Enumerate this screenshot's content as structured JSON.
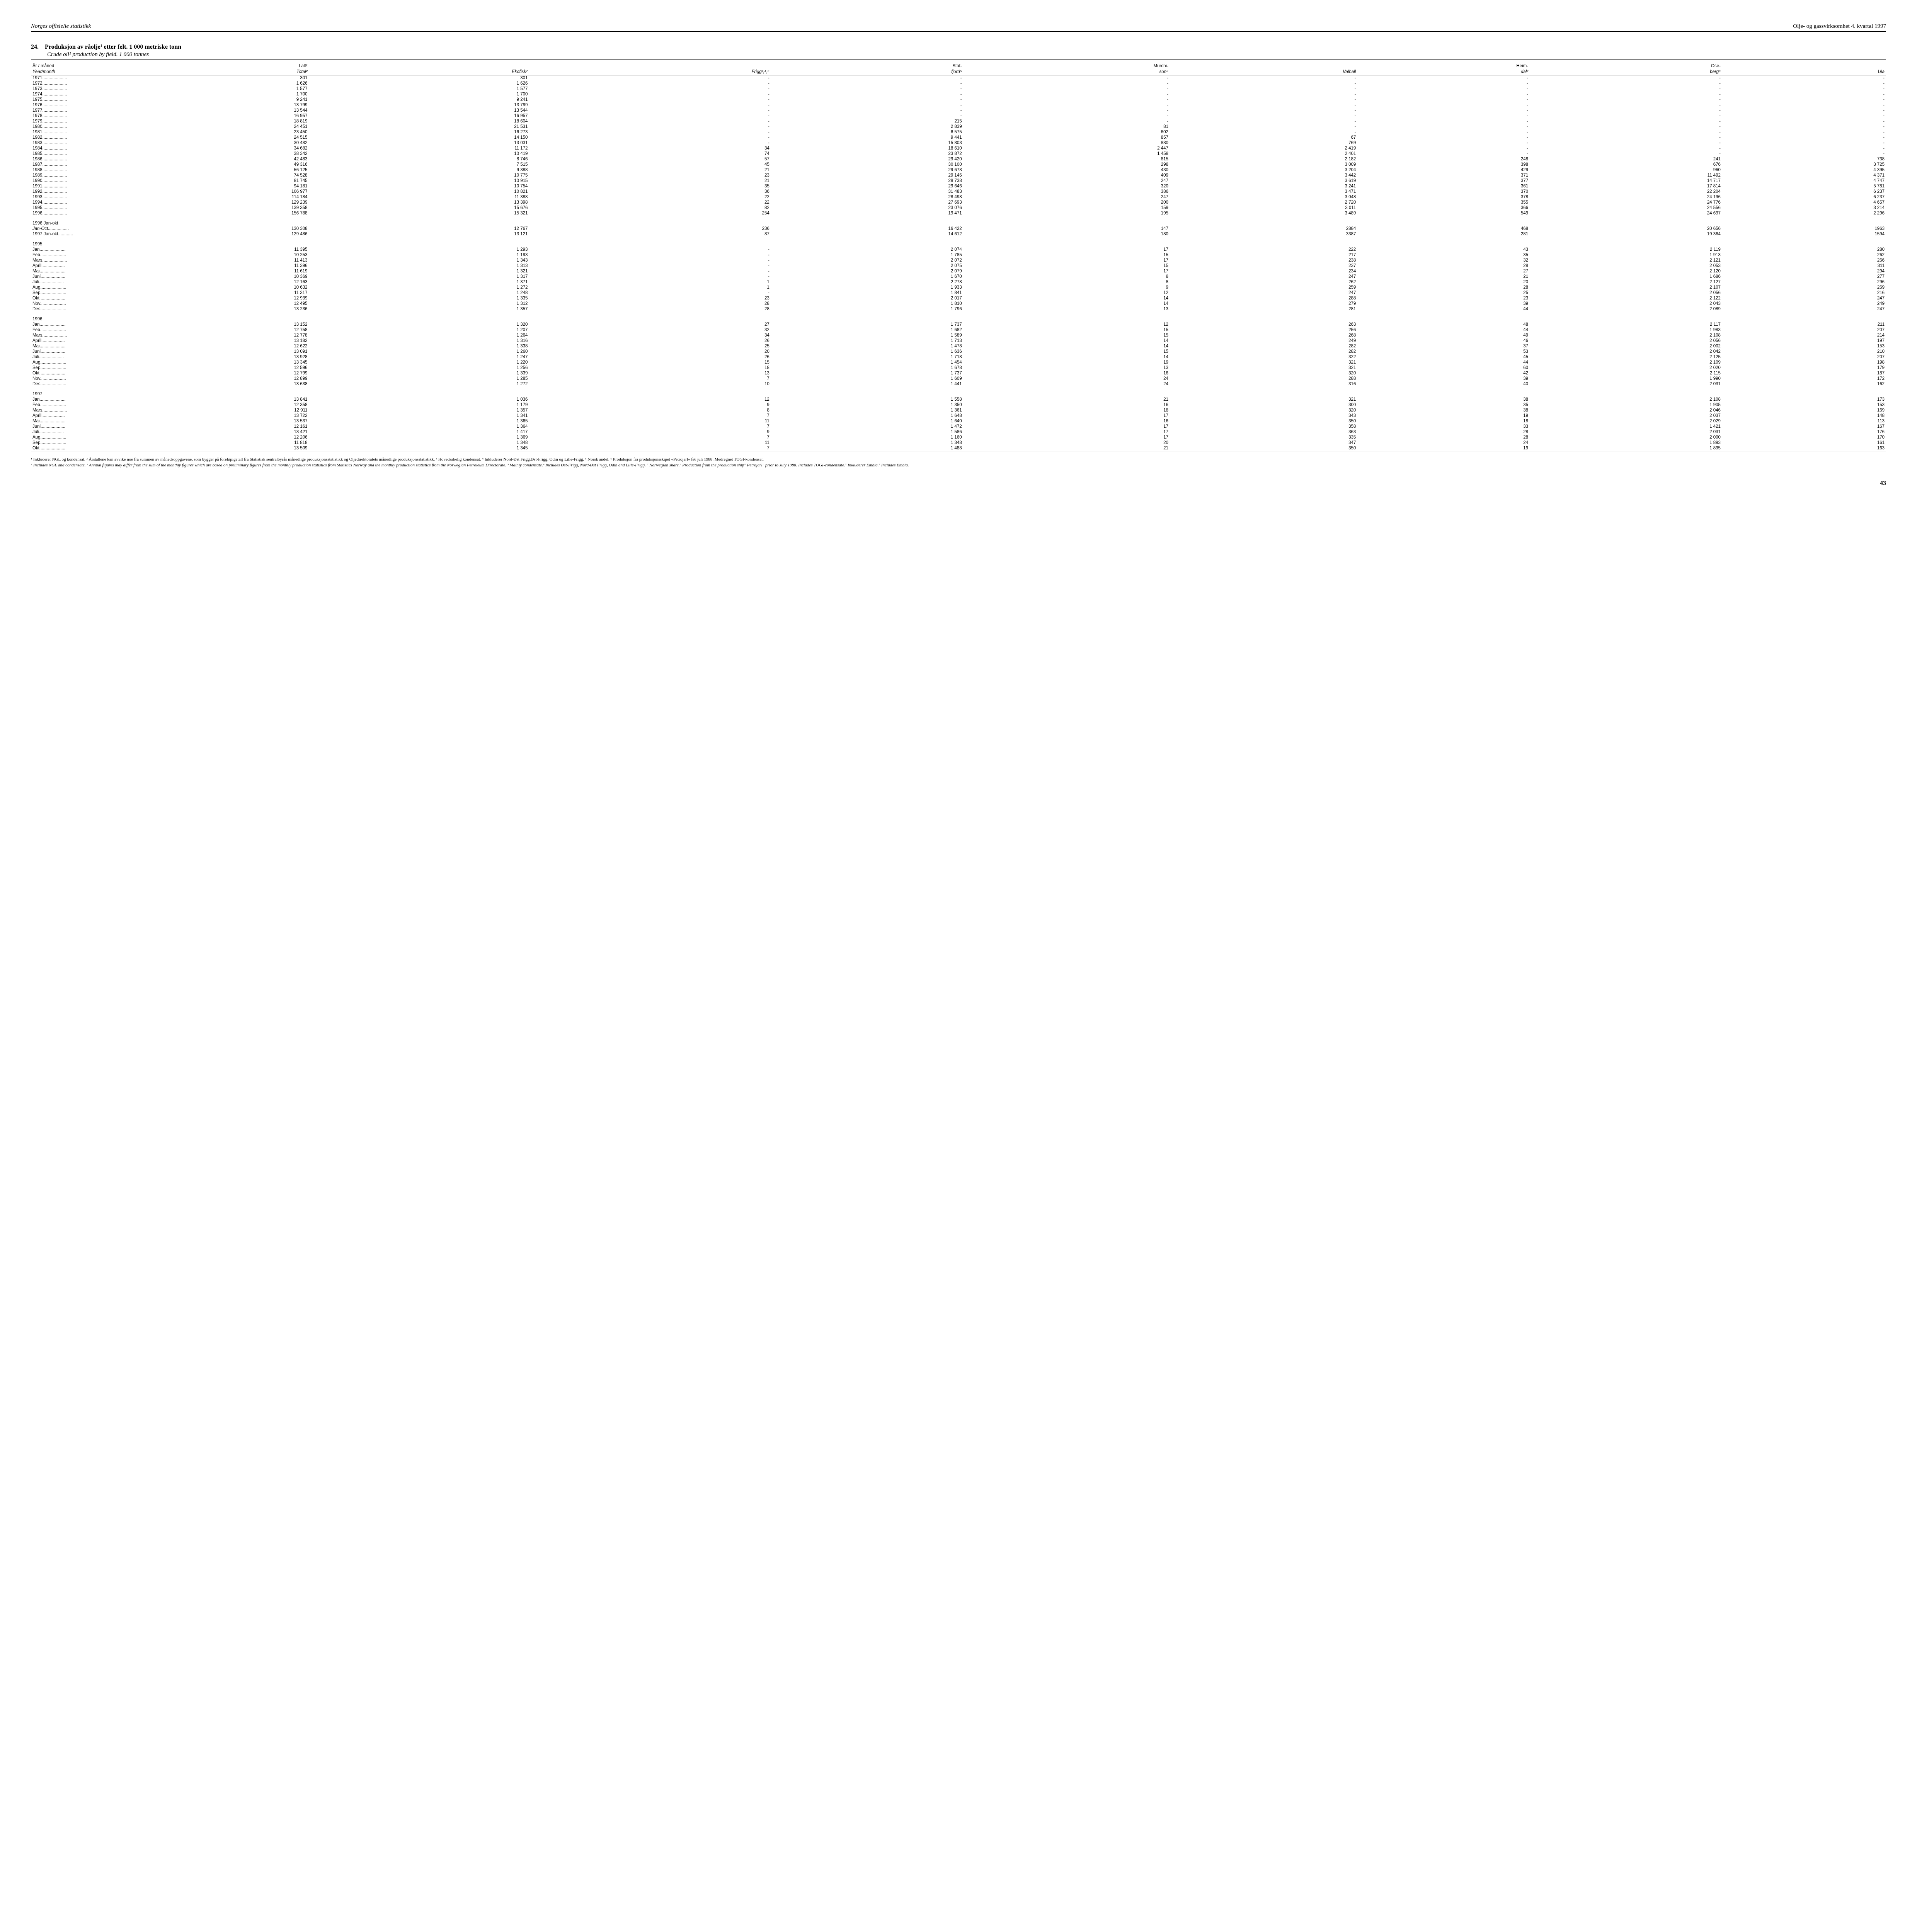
{
  "header": {
    "left": "Norges offisielle statistikk",
    "right": "Olje- og gassvirksomhet 4. kvartal 1997"
  },
  "title": {
    "number": "24.",
    "main": "Produksjon av råolje¹ etter felt. 1 000 metriske tonn",
    "sub": "Crude oil¹ production by field. 1 000 tonnes"
  },
  "columns": {
    "line1": [
      "År / måned",
      "I alt²",
      "",
      "",
      "Stat-",
      "Murchi-",
      "",
      "Heim-",
      "Ose-",
      ""
    ],
    "line2": [
      "Year/month",
      "Total²",
      "Ekofisk⁷",
      "Frigg³,⁴,⁵",
      "fjord⁵",
      "son⁵",
      "Valhall",
      "dal³",
      "berg⁶",
      "Ula"
    ]
  },
  "rows_years": [
    {
      "label": "1971",
      "v": [
        "301",
        "301",
        "-",
        "-",
        "-",
        "-",
        "-",
        "-",
        "-"
      ]
    },
    {
      "label": "1972",
      "v": [
        "1 626",
        "1 626",
        "-",
        "-",
        "-",
        "-",
        "-",
        "-",
        "-"
      ]
    },
    {
      "label": "1973",
      "v": [
        "1 577",
        "1 577",
        "-",
        "-",
        "-",
        "-",
        "-",
        "-",
        "-"
      ]
    },
    {
      "label": "1974",
      "v": [
        "1 700",
        "1 700",
        "-",
        "-",
        "-",
        "-",
        "-",
        "-",
        "-"
      ]
    },
    {
      "label": "1975",
      "v": [
        "9 241",
        "9 241",
        "-",
        "-",
        "-",
        "-",
        "-",
        "-",
        "-"
      ]
    },
    {
      "label": "1976",
      "v": [
        "13 799",
        "13 799",
        "-",
        "-",
        "-",
        "-",
        "-",
        "-",
        "-"
      ]
    },
    {
      "label": "1977",
      "v": [
        "13 544",
        "13 544",
        "-",
        "-",
        "-",
        "-",
        "-",
        "-",
        "-"
      ]
    },
    {
      "label": "1978",
      "v": [
        "16 957",
        "16 957",
        "-",
        "-",
        "-",
        "-",
        "-",
        "-",
        "-"
      ]
    },
    {
      "label": "1979",
      "v": [
        "18 819",
        "18 604",
        "-",
        "215",
        "-",
        "-",
        "-",
        "-",
        "-"
      ]
    },
    {
      "label": "1980",
      "v": [
        "24 451",
        "21 531",
        "-",
        "2 839",
        "81",
        "-",
        "-",
        "-",
        "-"
      ]
    },
    {
      "label": "1981",
      "v": [
        "23 450",
        "16 273",
        "-",
        "6 575",
        "602",
        "-",
        "-",
        "-",
        "-"
      ]
    },
    {
      "label": "1982",
      "v": [
        "24 515",
        "14 150",
        "-",
        "9 441",
        "857",
        "67",
        "-",
        "-",
        "-"
      ]
    },
    {
      "label": "1983",
      "v": [
        "30 482",
        "13 031",
        "-",
        "15 803",
        "880",
        "769",
        "-",
        "-",
        "-"
      ]
    },
    {
      "label": "1984",
      "v": [
        "34 682",
        "11 172",
        "34",
        "18 610",
        "2 447",
        "2 419",
        "-",
        "-",
        "-"
      ]
    },
    {
      "label": "1985",
      "v": [
        "38 342",
        "10 419",
        "74",
        "23 872",
        "1 458",
        "2 401",
        "-",
        "-",
        "-"
      ]
    },
    {
      "label": "1986",
      "v": [
        "42 483",
        "8 746",
        "57",
        "29 420",
        "815",
        "2 182",
        "248",
        "241",
        "738"
      ]
    },
    {
      "label": "1987",
      "v": [
        "49 316",
        "7 515",
        "45",
        "30 100",
        "298",
        "3 009",
        "398",
        "676",
        "3 725"
      ]
    },
    {
      "label": "1988",
      "v": [
        "56 125",
        "9 388",
        "21",
        "29 678",
        "430",
        "3 204",
        "429",
        "960",
        "4 395"
      ]
    },
    {
      "label": "1989",
      "v": [
        "74 528",
        "10 775",
        "23",
        "29 146",
        "409",
        "3 442",
        "371",
        "11 492",
        "4 371"
      ]
    },
    {
      "label": "1990",
      "v": [
        "81 745",
        "10 915",
        "21",
        "28 738",
        "247",
        "3 619",
        "377",
        "14 717",
        "4 747"
      ]
    },
    {
      "label": "1991",
      "v": [
        "94 181",
        "10 754",
        "35",
        "29 646",
        "320",
        "3 241",
        "361",
        "17 814",
        "5 781"
      ]
    },
    {
      "label": "1992",
      "v": [
        "106 977",
        "10 821",
        "36",
        "31 483",
        "386",
        "3 471",
        "370",
        "22 204",
        "6 237"
      ]
    },
    {
      "label": "1993",
      "v": [
        "114 184",
        "11 388",
        "22",
        "28 498",
        "247",
        "3 048",
        "378",
        "24 196",
        "6 237"
      ]
    },
    {
      "label": "1994",
      "v": [
        "129 239",
        "13 398",
        "22",
        "27 693",
        "200",
        "2 720",
        "355",
        "24 776",
        "4 657"
      ]
    },
    {
      "label": "1995",
      "v": [
        "139 358",
        "15 676",
        "82",
        "23 076",
        "159",
        "3 011",
        "366",
        "24 556",
        "3 214"
      ]
    },
    {
      "label": "1996",
      "v": [
        "156 788",
        "15 321",
        "254",
        "19 471",
        "195",
        "3 489",
        "549",
        "24 697",
        "2 296"
      ]
    }
  ],
  "rows_janokt_header": "1996 Jan-okt",
  "rows_janokt": [
    {
      "label": "Jan-Oct",
      "ital": true,
      "v": [
        "130 308",
        "12 767",
        "236",
        "16 422",
        "147",
        "2884",
        "468",
        "20 656",
        "1963"
      ]
    },
    {
      "label": "1997 Jan-okt",
      "v": [
        "129 486",
        "13 121",
        "87",
        "14 612",
        "180",
        "3387",
        "281",
        "19 364",
        "1594"
      ]
    }
  ],
  "rows_1995_header": "1995",
  "rows_1995": [
    {
      "label": "Jan",
      "v": [
        "11 395",
        "1 293",
        "-",
        "2 074",
        "17",
        "222",
        "43",
        "2 119",
        "280"
      ]
    },
    {
      "label": "Feb",
      "v": [
        "10 253",
        "1 193",
        "-",
        "1 785",
        "15",
        "217",
        "35",
        "1 913",
        "262"
      ]
    },
    {
      "label": "Mars",
      "v": [
        "11 413",
        "1 343",
        "-",
        "2 072",
        "17",
        "238",
        "32",
        "2 121",
        "266"
      ]
    },
    {
      "label": "April",
      "v": [
        "11 396",
        "1 313",
        "-",
        "2 075",
        "15",
        "237",
        "28",
        "2 053",
        "311"
      ]
    },
    {
      "label": "Mai",
      "v": [
        "11 619",
        "1 321",
        "-",
        "2 079",
        "17",
        "234",
        "27",
        "2 120",
        "294"
      ]
    },
    {
      "label": "Juni",
      "v": [
        "10 369",
        "1 317",
        "-",
        "1 670",
        "8",
        "247",
        "21",
        "1 686",
        "277"
      ]
    },
    {
      "label": "Juli",
      "v": [
        "12 163",
        "1 371",
        "1",
        "2 278",
        "8",
        "262",
        "20",
        "2 127",
        "296"
      ]
    },
    {
      "label": "Aug",
      "v": [
        "10 632",
        "1 272",
        "1",
        "1 933",
        "9",
        "259",
        "28",
        "2 107",
        "269"
      ]
    },
    {
      "label": "Sep",
      "v": [
        "11 317",
        "1 248",
        "-",
        "1 841",
        "12",
        "247",
        "25",
        "2 056",
        "216"
      ]
    },
    {
      "label": "Okt",
      "v": [
        "12 939",
        "1 335",
        "23",
        "2 017",
        "14",
        "288",
        "23",
        "2 122",
        "247"
      ]
    },
    {
      "label": "Nov",
      "v": [
        "12 495",
        "1 312",
        "28",
        "1 810",
        "14",
        "279",
        "39",
        "2 043",
        "249"
      ]
    },
    {
      "label": "Des",
      "v": [
        "13 236",
        "1 357",
        "28",
        "1 796",
        "13",
        "281",
        "44",
        "2 089",
        "247"
      ]
    }
  ],
  "rows_1996_header": "1996",
  "rows_1996": [
    {
      "label": "Jan",
      "v": [
        "13 152",
        "1 320",
        "27",
        "1 737",
        "12",
        "263",
        "48",
        "2 117",
        "211"
      ]
    },
    {
      "label": "Feb",
      "v": [
        "12 758",
        "1 207",
        "32",
        "1 682",
        "15",
        "256",
        "44",
        "1 983",
        "207"
      ]
    },
    {
      "label": "Mars",
      "v": [
        "12 778",
        "1 264",
        "34",
        "1 589",
        "15",
        "268",
        "49",
        "2 108",
        "214"
      ]
    },
    {
      "label": "April",
      "v": [
        "13 182",
        "1 316",
        "26",
        "1 713",
        "14",
        "249",
        "46",
        "2 056",
        "197"
      ]
    },
    {
      "label": "Mai",
      "v": [
        "12 622",
        "1 338",
        "25",
        "1 478",
        "14",
        "282",
        "37",
        "2 002",
        "153"
      ]
    },
    {
      "label": "Juni",
      "v": [
        "13 091",
        "1 260",
        "20",
        "1 636",
        "15",
        "282",
        "53",
        "2 042",
        "210"
      ]
    },
    {
      "label": "Juli",
      "v": [
        "13 928",
        "1 247",
        "26",
        "1 718",
        "14",
        "322",
        "45",
        "2 125",
        "207"
      ]
    },
    {
      "label": "Aug",
      "v": [
        "13 345",
        "1 220",
        "15",
        "1 454",
        "19",
        "321",
        "44",
        "2 109",
        "198"
      ]
    },
    {
      "label": "Sep",
      "v": [
        "12 596",
        "1 256",
        "18",
        "1 678",
        "13",
        "321",
        "60",
        "2 020",
        "179"
      ]
    },
    {
      "label": "Okt",
      "v": [
        "12 799",
        "1 339",
        "13",
        "1 737",
        "16",
        "320",
        "42",
        "2 115",
        "187"
      ]
    },
    {
      "label": "Nov",
      "v": [
        "12 899",
        "1 285",
        "7",
        "1 609",
        "24",
        "288",
        "39",
        "1 990",
        "172"
      ]
    },
    {
      "label": "Des",
      "v": [
        "13 638",
        "1 272",
        "10",
        "1 441",
        "24",
        "316",
        "40",
        "2 031",
        "162"
      ]
    }
  ],
  "rows_1997_header": "1997",
  "rows_1997": [
    {
      "label": "Jan",
      "v": [
        "13 841",
        "1 036",
        "12",
        "1 558",
        "21",
        "321",
        "38",
        "2 108",
        "173"
      ]
    },
    {
      "label": "Feb",
      "v": [
        "12 358",
        "1 179",
        "9",
        "1 350",
        "16",
        "300",
        "35",
        "1 905",
        "153"
      ]
    },
    {
      "label": "Mars",
      "v": [
        "12 911",
        "1 357",
        "8",
        "1 361",
        "18",
        "320",
        "38",
        "2 046",
        "169"
      ]
    },
    {
      "label": "April",
      "v": [
        "13 722",
        "1 341",
        "7",
        "1 648",
        "17",
        "343",
        "19",
        "2 037",
        "148"
      ]
    },
    {
      "label": "Mai",
      "v": [
        "13 537",
        "1 365",
        "11",
        "1 640",
        "16",
        "350",
        "18",
        "2 029",
        "113"
      ]
    },
    {
      "label": "Juni",
      "v": [
        "12 161",
        "1 364",
        "7",
        "1 472",
        "17",
        "358",
        "33",
        "1 421",
        "167"
      ]
    },
    {
      "label": "Juli",
      "v": [
        "13 421",
        "1 417",
        "9",
        "1 586",
        "17",
        "363",
        "28",
        "2 031",
        "176"
      ]
    },
    {
      "label": "Aug",
      "v": [
        "12 206",
        "1 369",
        "7",
        "1 160",
        "17",
        "335",
        "28",
        "2 000",
        "170"
      ]
    },
    {
      "label": "Sep",
      "v": [
        "11 818",
        "1 348",
        "11",
        "1 348",
        "20",
        "347",
        "24",
        "1 893",
        "161"
      ]
    },
    {
      "label": "Okt",
      "v": [
        "13 509",
        "1 345",
        "7",
        "1 488",
        "21",
        "350",
        "19",
        "1 895",
        "163"
      ]
    }
  ],
  "footnotes": {
    "no": "¹ Inkluderer NGL og kondensat. ² Årstallene kan avvike noe fra summen av månedsoppgavene, som bygger på foreløpigetall fra Statistisk sentralbyrås månedlige produksjonsstatistikk og Oljedirektoratets månedlige produksjonsstatistikk. ³ Hovedsakelig kondensat. ⁴ Inkluderer Nord-Øst Frigg,Øst-Frigg, Odin og Lille-Frigg. ⁵ Norsk andel. ⁶ Produksjon fra produksjonsskipet «Petrojarl» før juli 1988. Medregnet TOGI-kondensat.",
    "en": "¹ Includes NGL and condensate. ² Annual figures may differ from the sum of the monthly figures which are based on preliminary figures from the monthly production statistics from Statistics Norway and the monthly production statistics from the Norwegian Petroleum Directorate. ³ Mainly condensate.⁴ Includes Øst-Frigg, Nord-Øst Frigg, Odin and Lille-Frigg. ⁵ Norwegian share.⁶ Production from the production ship\" Petrojarl\" prior to July 1988. Includes TOGI-condensate.⁷ Inkluderer Embla.⁷ Includes Embla."
  },
  "page_number": "43"
}
